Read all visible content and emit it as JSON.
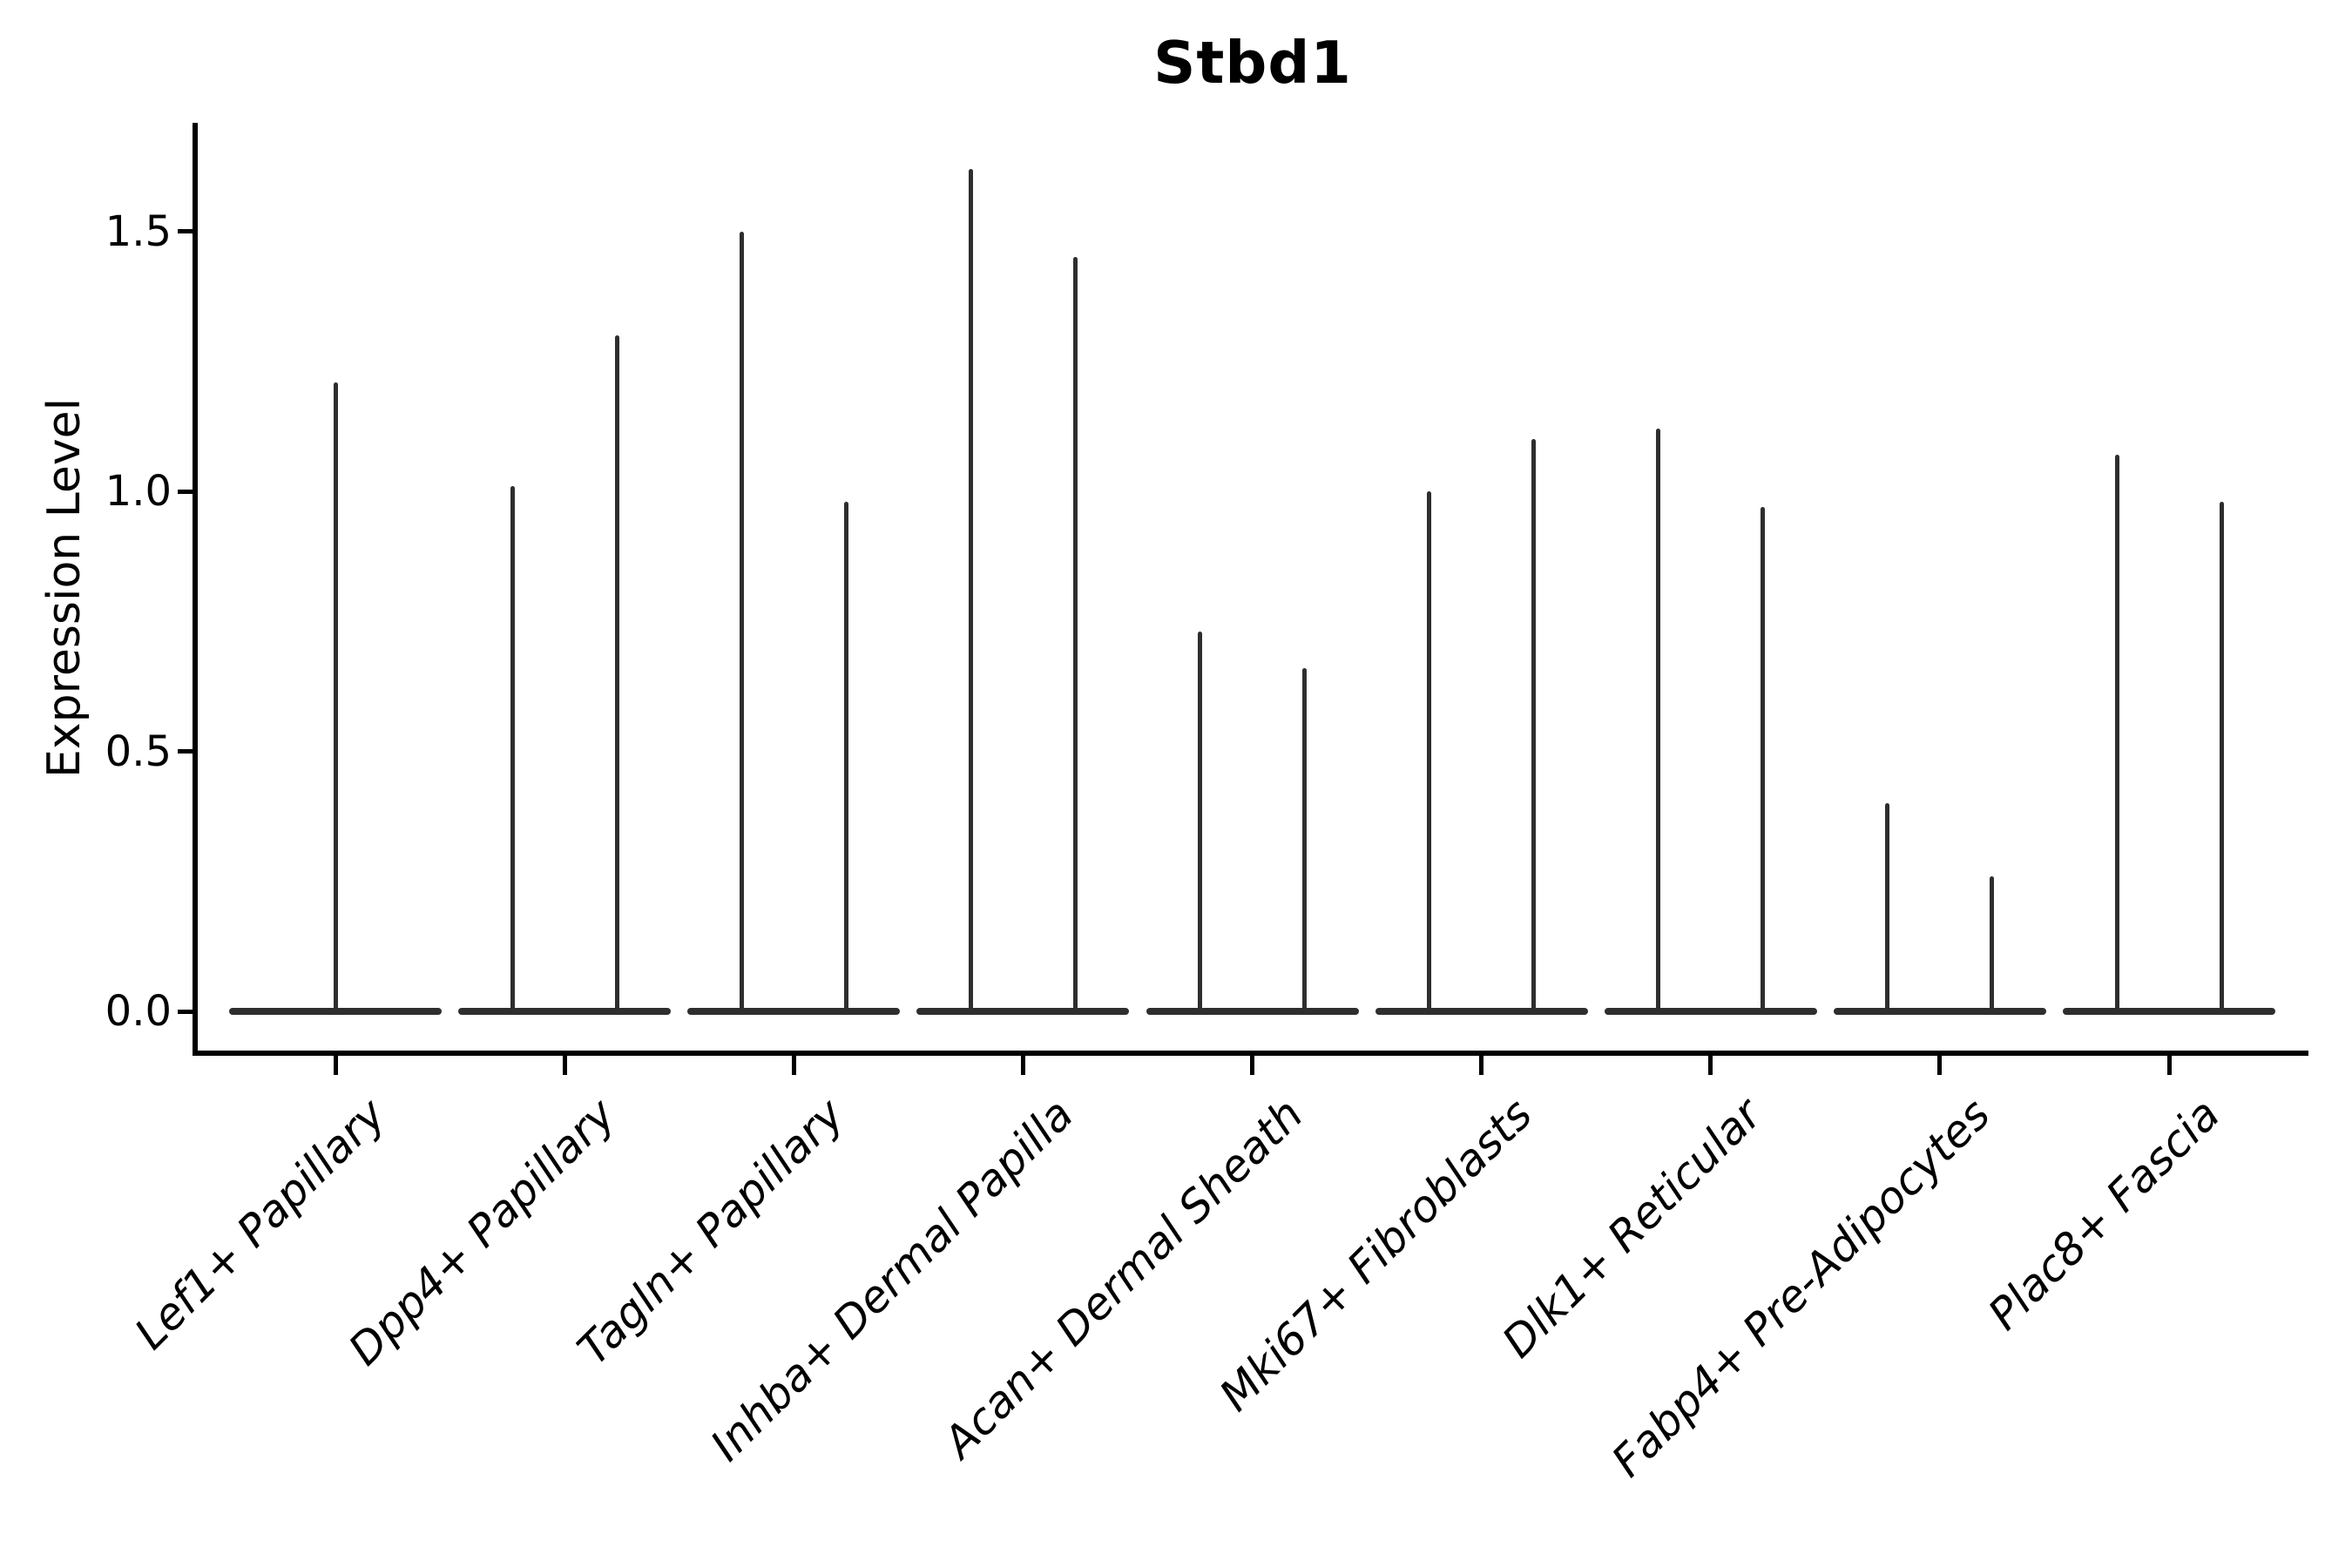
{
  "title": "Stbd1",
  "y_axis": {
    "label": "Expression Level",
    "tick_labels": [
      "0.0",
      "0.5",
      "1.0",
      "1.5"
    ],
    "tick_values": [
      0,
      0.5,
      1,
      1.5
    ]
  },
  "x_axis": {
    "categories": [
      "Lef1+ Papillary",
      "Dpp4+ Papillary",
      "Tagln+ Papillary",
      "Inhba+ Dermal Papilla",
      "Acan+ Dermal Sheath",
      "Mki67+ Fibroblasts",
      "Dlk1+ Reticular",
      "Fabp4+ Pre-Adipocytes",
      "Plac8+ Fascia"
    ]
  },
  "colors": {
    "violin": "#2e2e2e",
    "axis": "#000000",
    "text": "#000000",
    "background": "#ffffff"
  },
  "chart_data": {
    "type": "violin",
    "title": "Stbd1",
    "xlabel": "",
    "ylabel": "Expression Level",
    "ylim": [
      -0.08,
      1.71
    ],
    "yticks": [
      0,
      0.5,
      1,
      1.5
    ],
    "grid": false,
    "legend_position": "none",
    "baseline_value": 0,
    "categories": [
      "Lef1+ Papillary",
      "Dpp4+ Papillary",
      "Tagln+ Papillary",
      "Inhba+ Dermal Papilla",
      "Acan+ Dermal Sheath",
      "Mki67+ Fibroblasts",
      "Dlk1+ Reticular",
      "Fabp4+ Pre-Adipocytes",
      "Plac8+ Fascia"
    ],
    "violins": [
      {
        "category": "Lef1+ Papillary",
        "spike_maxima": [
          1.21
        ]
      },
      {
        "category": "Dpp4+ Papillary",
        "spike_maxima": [
          1.01,
          1.3
        ]
      },
      {
        "category": "Tagln+ Papillary",
        "spike_maxima": [
          1.5,
          0.98
        ]
      },
      {
        "category": "Inhba+ Dermal Papilla",
        "spike_maxima": [
          1.62,
          1.45
        ]
      },
      {
        "category": "Acan+ Dermal Sheath",
        "spike_maxima": [
          0.73,
          0.66
        ]
      },
      {
        "category": "Mki67+ Fibroblasts",
        "spike_maxima": [
          1.0,
          1.1
        ]
      },
      {
        "category": "Dlk1+ Reticular",
        "spike_maxima": [
          1.12,
          0.97
        ]
      },
      {
        "category": "Fabp4+ Pre-Adipocytes",
        "spike_maxima": [
          0.4,
          0.26
        ]
      },
      {
        "category": "Plac8+ Fascia",
        "spike_maxima": [
          1.07,
          0.98
        ]
      }
    ]
  }
}
